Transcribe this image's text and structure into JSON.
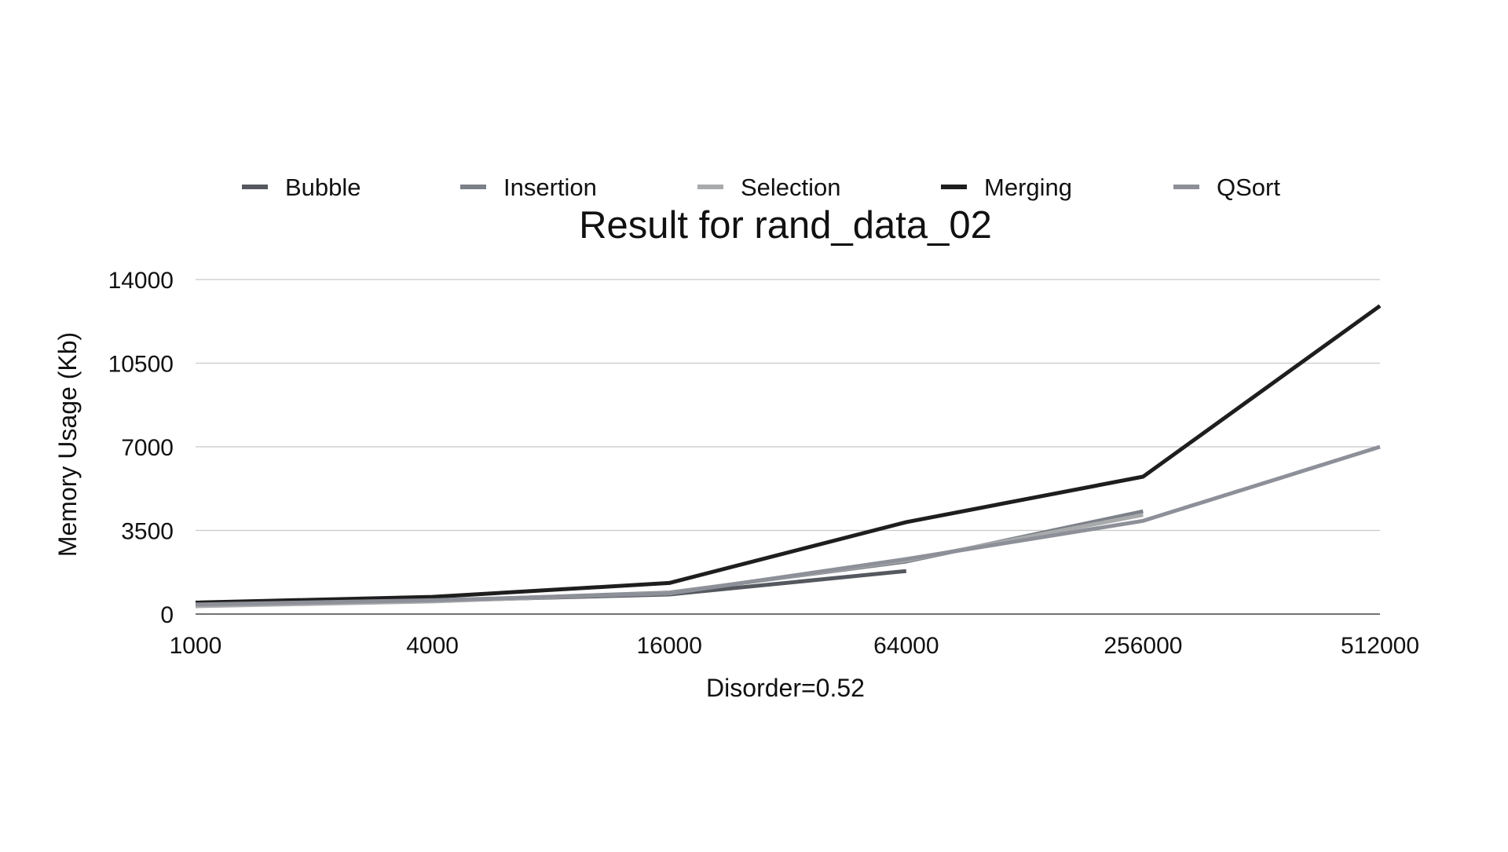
{
  "chart_data": {
    "type": "line",
    "title": "Result for rand_data_02",
    "xlabel": "Disorder=0.52",
    "ylabel": "Memory Usage (Kb)",
    "categories": [
      "1000",
      "4000",
      "16000",
      "64000",
      "256000",
      "512000"
    ],
    "y_ticks": [
      0,
      3500,
      7000,
      10500,
      14000
    ],
    "ylim": [
      0,
      14000
    ],
    "grid": true,
    "legend_position": "top",
    "series": [
      {
        "name": "Bubble",
        "color": "#55585e",
        "values": [
          380,
          560,
          820,
          1800,
          null,
          null
        ]
      },
      {
        "name": "Insertion",
        "color": "#7c8088",
        "values": [
          360,
          550,
          900,
          2200,
          4300,
          null
        ]
      },
      {
        "name": "Selection",
        "color": "#a9aaac",
        "values": [
          330,
          530,
          880,
          2250,
          4150,
          null
        ]
      },
      {
        "name": "Merging",
        "color": "#1e1e1e",
        "values": [
          480,
          720,
          1300,
          3850,
          5750,
          12900
        ]
      },
      {
        "name": "QSort",
        "color": "#8e9099",
        "values": [
          400,
          580,
          860,
          2300,
          3900,
          7000
        ]
      }
    ]
  }
}
